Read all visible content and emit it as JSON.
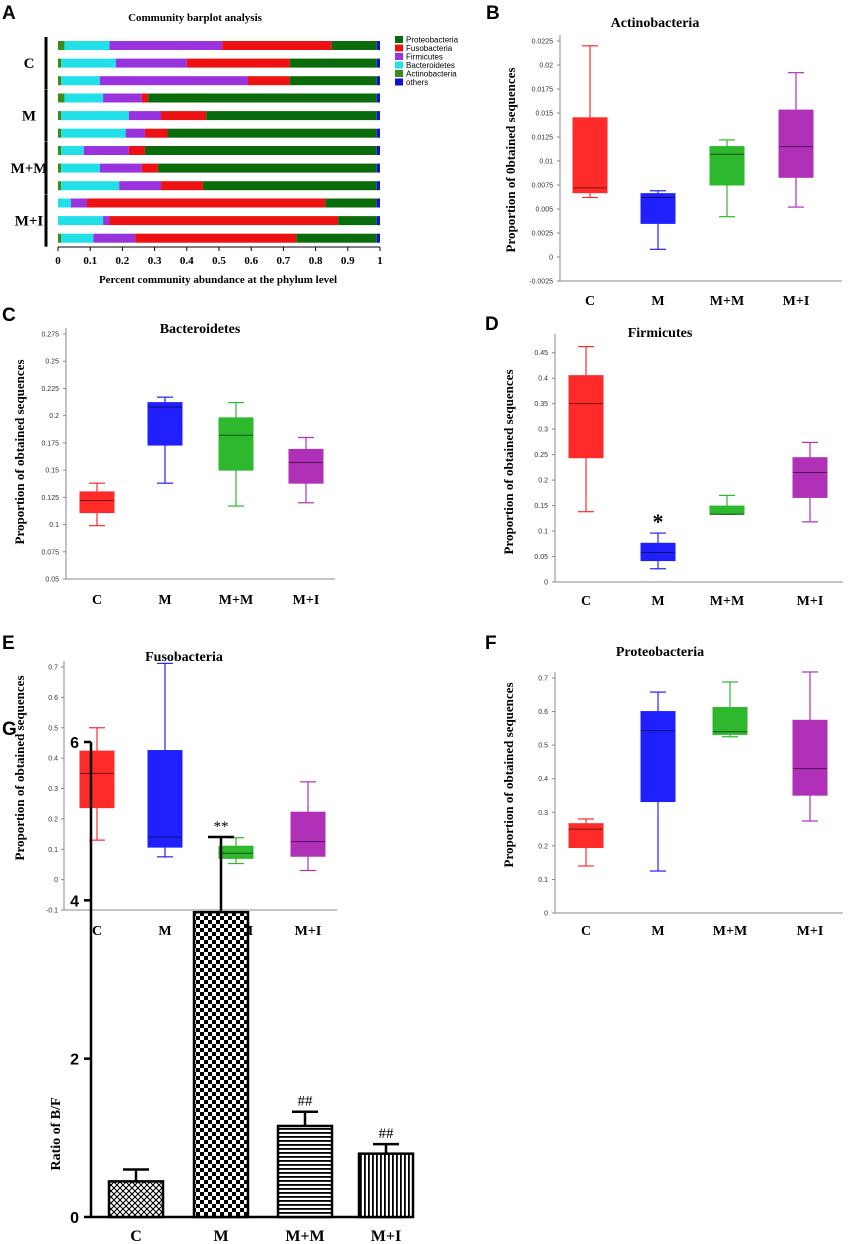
{
  "panels": [
    "A",
    "B",
    "C",
    "D",
    "E",
    "F",
    "G"
  ],
  "chart_data": [
    {
      "panel": "A",
      "type": "bar",
      "orientation": "horizontal-stacked",
      "title": "Community barplot analysis",
      "xlabel": "Percent community abundance at the phylum level",
      "xticks": [
        "0",
        "0.1",
        "0.2",
        "0.3",
        "0.4",
        "0.5",
        "0.6",
        "0.7",
        "0.8",
        "0.9",
        "1"
      ],
      "xlim": [
        0,
        1
      ],
      "legend": [
        "Proteobacteria",
        "Fusobacteria",
        "Firmicutes",
        "Bacteroidetes",
        "Actinobacteria",
        "others"
      ],
      "colors": {
        "Proteobacteria": "#0a6b0a",
        "Fusobacteria": "#ee1111",
        "Firmicutes": "#9933dd",
        "Bacteroidetes": "#22e0e8",
        "Actinobacteria": "#3c8c1c",
        "others": "#1010dd"
      },
      "segment_order": [
        "Actinobacteria",
        "Bacteroidetes",
        "Firmicutes",
        "Fusobacteria",
        "Proteobacteria",
        "others"
      ],
      "groups": [
        {
          "name": "C",
          "samples": [
            {
              "Actinobacteria": 0.02,
              "Bacteroidetes": 0.14,
              "Firmicutes": 0.35,
              "Fusobacteria": 0.34,
              "Proteobacteria": 0.14,
              "others": 0.01
            },
            {
              "Actinobacteria": 0.01,
              "Bacteroidetes": 0.17,
              "Firmicutes": 0.22,
              "Fusobacteria": 0.32,
              "Proteobacteria": 0.27,
              "others": 0.01
            },
            {
              "Actinobacteria": 0.01,
              "Bacteroidetes": 0.12,
              "Firmicutes": 0.46,
              "Fusobacteria": 0.13,
              "Proteobacteria": 0.27,
              "others": 0.01
            }
          ]
        },
        {
          "name": "M",
          "samples": [
            {
              "Actinobacteria": 0.02,
              "Bacteroidetes": 0.12,
              "Firmicutes": 0.12,
              "Fusobacteria": 0.02,
              "Proteobacteria": 0.71,
              "others": 0.01
            },
            {
              "Actinobacteria": 0.01,
              "Bacteroidetes": 0.21,
              "Firmicutes": 0.1,
              "Fusobacteria": 0.14,
              "Proteobacteria": 0.53,
              "others": 0.01
            },
            {
              "Actinobacteria": 0.01,
              "Bacteroidetes": 0.2,
              "Firmicutes": 0.06,
              "Fusobacteria": 0.07,
              "Proteobacteria": 0.65,
              "others": 0.01
            }
          ]
        },
        {
          "name": "M+M",
          "samples": [
            {
              "Actinobacteria": 0.01,
              "Bacteroidetes": 0.07,
              "Firmicutes": 0.14,
              "Fusobacteria": 0.05,
              "Proteobacteria": 0.72,
              "others": 0.01
            },
            {
              "Actinobacteria": 0.01,
              "Bacteroidetes": 0.12,
              "Firmicutes": 0.13,
              "Fusobacteria": 0.05,
              "Proteobacteria": 0.68,
              "others": 0.01
            },
            {
              "Actinobacteria": 0.01,
              "Bacteroidetes": 0.18,
              "Firmicutes": 0.13,
              "Fusobacteria": 0.13,
              "Proteobacteria": 0.54,
              "others": 0.01
            }
          ]
        },
        {
          "name": "M+I",
          "samples": [
            {
              "Actinobacteria": 0.0,
              "Bacteroidetes": 0.04,
              "Firmicutes": 0.05,
              "Fusobacteria": 0.74,
              "Proteobacteria": 0.16,
              "others": 0.01
            },
            {
              "Actinobacteria": 0.0,
              "Bacteroidetes": 0.14,
              "Firmicutes": 0.02,
              "Fusobacteria": 0.71,
              "Proteobacteria": 0.12,
              "others": 0.01
            },
            {
              "Actinobacteria": 0.01,
              "Bacteroidetes": 0.1,
              "Firmicutes": 0.13,
              "Fusobacteria": 0.5,
              "Proteobacteria": 0.25,
              "others": 0.01
            }
          ]
        }
      ]
    },
    {
      "panel": "B",
      "type": "box",
      "title": "Actinobacteria",
      "ylabel": "Proportion of 0btained sequences",
      "ylim": [
        -0.0025,
        0.0225
      ],
      "yticks": [
        "-0.0025",
        "0",
        "0.0025",
        "0.005",
        "0.0075",
        "0.01",
        "0.0125",
        "0.015",
        "0.0175",
        "0.02",
        "0.0225"
      ],
      "categories": [
        "C",
        "M",
        "M+M",
        "M+I"
      ],
      "boxes": [
        {
          "group": "C",
          "min": 0.0062,
          "q1": 0.0067,
          "median": 0.0072,
          "q3": 0.0145,
          "max": 0.022,
          "color": "#ff2a2a"
        },
        {
          "group": "M",
          "min": 0.0008,
          "q1": 0.0035,
          "median": 0.0062,
          "q3": 0.0066,
          "max": 0.0069,
          "color": "#2020ff"
        },
        {
          "group": "M+M",
          "min": 0.0042,
          "q1": 0.0075,
          "median": 0.0107,
          "q3": 0.0115,
          "max": 0.0122,
          "color": "#2db82d"
        },
        {
          "group": "M+I",
          "min": 0.0052,
          "q1": 0.0083,
          "median": 0.0115,
          "q3": 0.0153,
          "max": 0.0192,
          "color": "#b030b8"
        }
      ],
      "annotations": []
    },
    {
      "panel": "C",
      "type": "box",
      "title": "Bacteroidetes",
      "ylabel": "Proportion of obtained sequences",
      "ylim": [
        0.05,
        0.275
      ],
      "yticks": [
        "0.05",
        "0.075",
        "0.1",
        "0.125",
        "0.15",
        "0.175",
        "0.2",
        "0.225",
        "0.25",
        "0.275"
      ],
      "categories": [
        "C",
        "M",
        "M+M",
        "M+I"
      ],
      "boxes": [
        {
          "group": "C",
          "min": 0.099,
          "q1": 0.111,
          "median": 0.122,
          "q3": 0.13,
          "max": 0.138,
          "color": "#ff2a2a"
        },
        {
          "group": "M",
          "min": 0.138,
          "q1": 0.173,
          "median": 0.208,
          "q3": 0.212,
          "max": 0.217,
          "color": "#2020ff"
        },
        {
          "group": "M+M",
          "min": 0.117,
          "q1": 0.15,
          "median": 0.182,
          "q3": 0.198,
          "max": 0.212,
          "color": "#2db82d"
        },
        {
          "group": "M+I",
          "min": 0.12,
          "q1": 0.138,
          "median": 0.157,
          "q3": 0.169,
          "max": 0.18,
          "color": "#b030b8"
        }
      ],
      "annotations": []
    },
    {
      "panel": "D",
      "type": "box",
      "title": "Firmicutes",
      "ylabel": "Proportion of obtained sequences",
      "ylim": [
        0,
        0.475
      ],
      "yticks": [
        "0",
        "0.05",
        "0.1",
        "0.15",
        "0.2",
        "0.25",
        "0.3",
        "0.35",
        "0.4",
        "0.45"
      ],
      "categories": [
        "C",
        "M",
        "M+M",
        "M+I"
      ],
      "boxes": [
        {
          "group": "C",
          "min": 0.138,
          "q1": 0.244,
          "median": 0.35,
          "q3": 0.405,
          "max": 0.462,
          "color": "#ff2a2a"
        },
        {
          "group": "M",
          "min": 0.026,
          "q1": 0.042,
          "median": 0.058,
          "q3": 0.076,
          "max": 0.096,
          "color": "#2020ff"
        },
        {
          "group": "M+M",
          "min": 0.133,
          "q1": 0.133,
          "median": 0.133,
          "q3": 0.149,
          "max": 0.17,
          "color": "#2db82d"
        },
        {
          "group": "M+I",
          "min": 0.118,
          "q1": 0.166,
          "median": 0.215,
          "q3": 0.244,
          "max": 0.274,
          "color": "#b030b8"
        }
      ],
      "annotations": [
        {
          "group": "M",
          "text": "*"
        }
      ]
    },
    {
      "panel": "E",
      "type": "box",
      "title": "Fusobacteria",
      "ylabel": "Proportion of obtained sequences",
      "ylim": [
        -0.1,
        0.7
      ],
      "yticks": [
        "-0.1",
        "0",
        "0.1",
        "0.2",
        "0.3",
        "0.4",
        "0.5",
        "0.6",
        "0.7"
      ],
      "categories": [
        "C",
        "M",
        "M+M",
        "M+I"
      ],
      "boxes": [
        {
          "group": "C",
          "min": 0.13,
          "q1": 0.237,
          "median": 0.35,
          "q3": 0.423,
          "max": 0.5,
          "color": "#ff2a2a"
        },
        {
          "group": "M",
          "min": 0.075,
          "q1": 0.107,
          "median": 0.14,
          "q3": 0.425,
          "max": 0.712,
          "color": "#2020ff"
        },
        {
          "group": "M+M",
          "min": 0.053,
          "q1": 0.07,
          "median": 0.087,
          "q3": 0.11,
          "max": 0.138,
          "color": "#2db82d"
        },
        {
          "group": "M+I",
          "min": 0.03,
          "q1": 0.077,
          "median": 0.125,
          "q3": 0.222,
          "max": 0.322,
          "color": "#b030b8"
        }
      ],
      "annotations": []
    },
    {
      "panel": "F",
      "type": "box",
      "title": "Proteobacteria",
      "ylabel": "Proportion of obtained sequences",
      "ylim": [
        0,
        0.7
      ],
      "yticks": [
        "0",
        "0.1",
        "0.2",
        "0.3",
        "0.4",
        "0.5",
        "0.6",
        "0.7"
      ],
      "categories": [
        "C",
        "M",
        "M+M",
        "M+I"
      ],
      "boxes": [
        {
          "group": "C",
          "min": 0.14,
          "q1": 0.195,
          "median": 0.25,
          "q3": 0.266,
          "max": 0.28,
          "color": "#ff2a2a"
        },
        {
          "group": "M",
          "min": 0.125,
          "q1": 0.332,
          "median": 0.543,
          "q3": 0.6,
          "max": 0.658,
          "color": "#2020ff"
        },
        {
          "group": "M+M",
          "min": 0.525,
          "q1": 0.532,
          "median": 0.54,
          "q3": 0.612,
          "max": 0.688,
          "color": "#2db82d"
        },
        {
          "group": "M+I",
          "min": 0.274,
          "q1": 0.351,
          "median": 0.43,
          "q3": 0.574,
          "max": 0.718,
          "color": "#b030b8"
        }
      ],
      "annotations": []
    },
    {
      "panel": "G",
      "type": "bar",
      "ylabel": "Ratio of B/F",
      "ylim": [
        0,
        6
      ],
      "yticks": [
        "0",
        "2",
        "4",
        "6"
      ],
      "categories": [
        "C",
        "M",
        "M+M",
        "M+I"
      ],
      "values": [
        0.45,
        3.85,
        1.15,
        0.8
      ],
      "errors": [
        0.15,
        0.95,
        0.18,
        0.12
      ],
      "patterns": [
        "crosshatch",
        "checker",
        "horizontal",
        "vertical"
      ],
      "annotations": [
        "",
        "**",
        "##",
        "##"
      ]
    }
  ]
}
